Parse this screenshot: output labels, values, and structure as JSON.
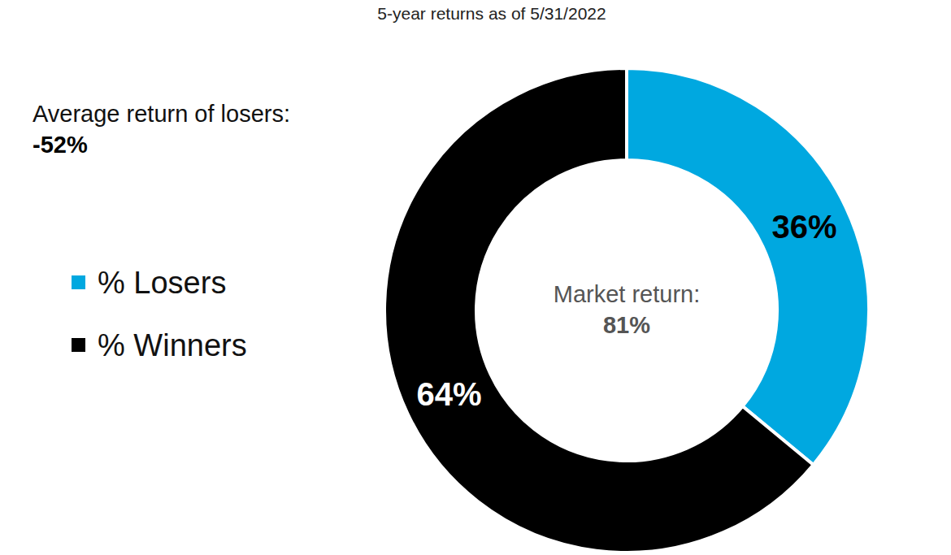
{
  "chart_data": {
    "type": "pie",
    "subtitle": "5-year returns as of 5/31/2022",
    "categories": [
      "% Losers",
      "% Winners"
    ],
    "values": [
      36,
      64
    ],
    "value_labels": [
      "36%",
      "64%"
    ],
    "colors": [
      "#00a8e0",
      "#000000"
    ],
    "data_labels": true,
    "legend": "left",
    "annotations": [
      {
        "text": "Average return of losers:",
        "value": -52,
        "label": "-52%"
      },
      {
        "text": "Market return:",
        "value": 81,
        "label": "81%"
      }
    ]
  }
}
